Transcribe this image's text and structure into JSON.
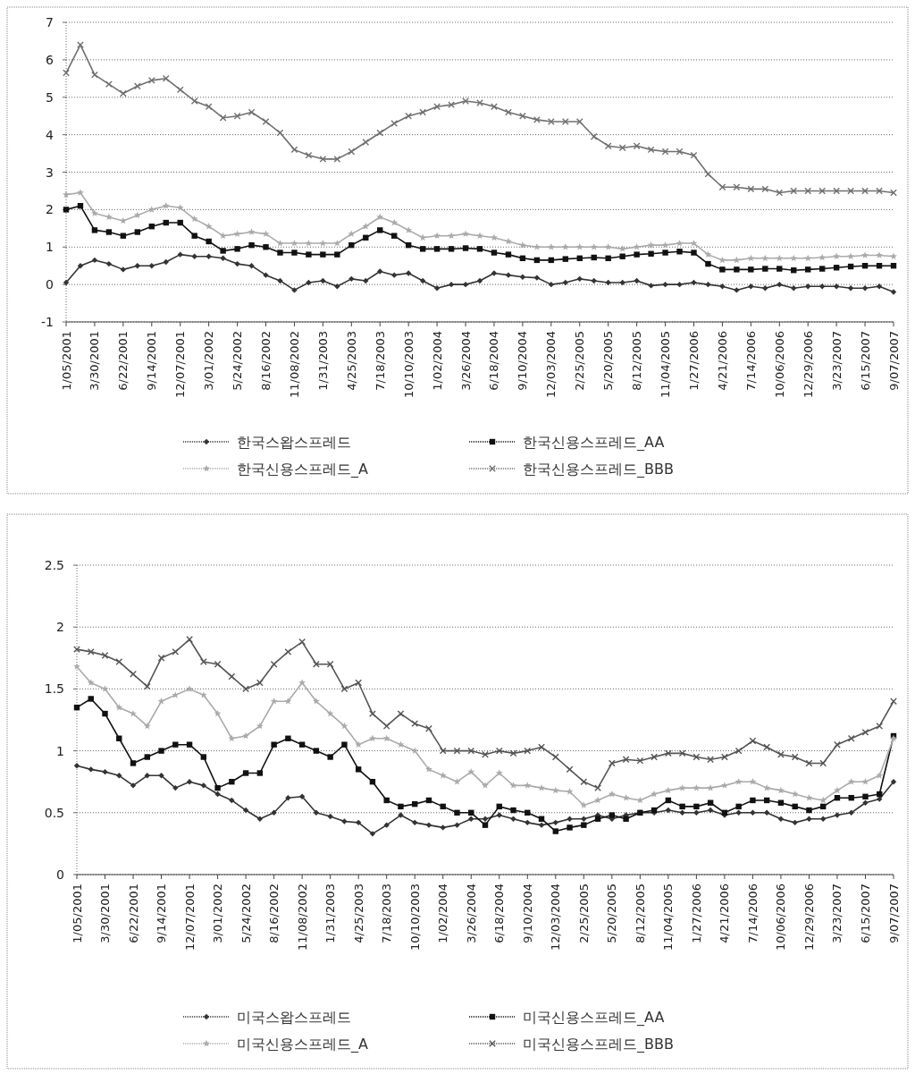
{
  "chart_data": [
    {
      "type": "line",
      "grid": "y",
      "legend": "bottom",
      "x": [
        "2001-01-05",
        "2001-02-16",
        "2001-03-30",
        "2001-05-11",
        "2001-06-22",
        "2001-08-03",
        "2001-09-14",
        "2001-10-26",
        "2001-12-07",
        "2002-01-18",
        "2002-03-01",
        "2002-04-12",
        "2002-05-24",
        "2002-07-05",
        "2002-08-16",
        "2002-09-27",
        "2002-11-08",
        "2002-12-20",
        "2003-01-31",
        "2003-03-14",
        "2003-04-25",
        "2003-06-06",
        "2003-07-18",
        "2003-08-29",
        "2003-10-10",
        "2003-11-21",
        "2004-01-02",
        "2004-02-13",
        "2004-03-26",
        "2004-05-07",
        "2004-06-18",
        "2004-07-30",
        "2004-09-10",
        "2004-10-22",
        "2004-12-03",
        "2005-01-14",
        "2005-02-25",
        "2005-04-08",
        "2005-05-20",
        "2005-07-01",
        "2005-08-12",
        "2005-09-23",
        "2005-11-04",
        "2005-12-16",
        "2006-01-27",
        "2006-03-10",
        "2006-04-21",
        "2006-06-02",
        "2006-07-14",
        "2006-08-25",
        "2006-10-06",
        "2006-11-17",
        "2006-12-29",
        "2007-02-09",
        "2007-03-23",
        "2007-05-04",
        "2007-06-15",
        "2007-07-27",
        "2007-09-07"
      ],
      "xlim": [
        "2001-01-05",
        "2007-09-07"
      ],
      "xticks": [
        {
          "value": "2001-01-05",
          "label": "1/05/2001"
        },
        {
          "value": "2001-03-30",
          "label": "3/30/2001"
        },
        {
          "value": "2001-06-22",
          "label": "6/22/2001"
        },
        {
          "value": "2001-09-14",
          "label": "9/14/2001"
        },
        {
          "value": "2001-12-07",
          "label": "12/07/2001"
        },
        {
          "value": "2002-03-01",
          "label": "3/01/2002"
        },
        {
          "value": "2002-05-24",
          "label": "5/24/2002"
        },
        {
          "value": "2002-08-16",
          "label": "8/16/2002"
        },
        {
          "value": "2002-11-08",
          "label": "11/08/2002"
        },
        {
          "value": "2003-01-31",
          "label": "1/31/2003"
        },
        {
          "value": "2003-04-25",
          "label": "4/25/2003"
        },
        {
          "value": "2003-07-18",
          "label": "7/18/2003"
        },
        {
          "value": "2003-10-10",
          "label": "10/10/2003"
        },
        {
          "value": "2004-01-02",
          "label": "1/02/2004"
        },
        {
          "value": "2004-03-26",
          "label": "3/26/2004"
        },
        {
          "value": "2004-06-18",
          "label": "6/18/2004"
        },
        {
          "value": "2004-09-10",
          "label": "9/10/2004"
        },
        {
          "value": "2004-12-03",
          "label": "12/03/2004"
        },
        {
          "value": "2005-02-25",
          "label": "2/25/2005"
        },
        {
          "value": "2005-05-20",
          "label": "5/20/2005"
        },
        {
          "value": "2005-08-12",
          "label": "8/12/2005"
        },
        {
          "value": "2005-11-04",
          "label": "11/04/2005"
        },
        {
          "value": "2006-01-27",
          "label": "1/27/2006"
        },
        {
          "value": "2006-04-21",
          "label": "4/21/2006"
        },
        {
          "value": "2006-07-14",
          "label": "7/14/2006"
        },
        {
          "value": "2006-10-06",
          "label": "10/06/2006"
        },
        {
          "value": "2006-12-29",
          "label": "12/29/2006"
        },
        {
          "value": "2007-03-23",
          "label": "3/23/2007"
        },
        {
          "value": "2007-06-15",
          "label": "6/15/2007"
        },
        {
          "value": "2007-09-07",
          "label": "9/07/2007"
        }
      ],
      "ylim": [
        -1,
        7
      ],
      "yticks": [
        -1,
        0,
        1,
        2,
        3,
        4,
        5,
        6,
        7
      ],
      "series": [
        {
          "name": "한국스왑스프레드",
          "color": "#333333",
          "marker": "diamond",
          "values": [
            0.05,
            0.5,
            0.65,
            0.55,
            0.4,
            0.5,
            0.5,
            0.6,
            0.8,
            0.75,
            0.75,
            0.7,
            0.55,
            0.5,
            0.25,
            0.1,
            -0.15,
            0.05,
            0.1,
            -0.05,
            0.15,
            0.1,
            0.35,
            0.25,
            0.3,
            0.1,
            -0.1,
            0,
            0,
            0.1,
            0.3,
            0.25,
            0.2,
            0.18,
            0,
            0.05,
            0.15,
            0.1,
            0.05,
            0.05,
            0.1,
            -0.03,
            0,
            0,
            0.05,
            0,
            -0.05,
            -0.15,
            -0.05,
            -0.1,
            0,
            -0.1,
            -0.05,
            -0.05,
            -0.05,
            -0.1,
            -0.1,
            -0.05,
            -0.2
          ]
        },
        {
          "name": "한국신용스프레드_AA",
          "color": "#111111",
          "marker": "square",
          "values": [
            2.0,
            2.1,
            1.45,
            1.4,
            1.3,
            1.4,
            1.55,
            1.65,
            1.65,
            1.3,
            1.15,
            0.9,
            0.95,
            1.05,
            1.0,
            0.85,
            0.85,
            0.8,
            0.8,
            0.8,
            1.05,
            1.25,
            1.45,
            1.3,
            1.05,
            0.95,
            0.95,
            0.95,
            0.97,
            0.95,
            0.85,
            0.8,
            0.7,
            0.65,
            0.65,
            0.68,
            0.7,
            0.72,
            0.7,
            0.75,
            0.8,
            0.82,
            0.85,
            0.88,
            0.85,
            0.55,
            0.4,
            0.4,
            0.4,
            0.42,
            0.42,
            0.38,
            0.4,
            0.42,
            0.45,
            0.48,
            0.5,
            0.5,
            0.5
          ]
        },
        {
          "name": "한국신용스프레드_A",
          "color": "#aaaaaa",
          "marker": "star",
          "values": [
            2.4,
            2.45,
            1.9,
            1.8,
            1.7,
            1.85,
            2.0,
            2.1,
            2.05,
            1.75,
            1.55,
            1.3,
            1.35,
            1.4,
            1.35,
            1.1,
            1.1,
            1.1,
            1.1,
            1.1,
            1.35,
            1.55,
            1.8,
            1.65,
            1.45,
            1.25,
            1.3,
            1.3,
            1.35,
            1.3,
            1.25,
            1.15,
            1.05,
            1.0,
            1.0,
            1.0,
            1.0,
            1.0,
            1.0,
            0.95,
            1.0,
            1.05,
            1.05,
            1.1,
            1.1,
            0.8,
            0.65,
            0.65,
            0.7,
            0.7,
            0.7,
            0.7,
            0.7,
            0.72,
            0.75,
            0.75,
            0.78,
            0.78,
            0.75
          ]
        },
        {
          "name": "한국신용스프레드_BBB",
          "color": "#707070",
          "marker": "cross",
          "values": [
            5.65,
            6.4,
            5.6,
            5.35,
            5.1,
            5.3,
            5.45,
            5.5,
            5.2,
            4.9,
            4.75,
            4.45,
            4.5,
            4.6,
            4.35,
            4.05,
            3.6,
            3.45,
            3.35,
            3.35,
            3.55,
            3.8,
            4.05,
            4.3,
            4.5,
            4.6,
            4.75,
            4.8,
            4.9,
            4.85,
            4.75,
            4.6,
            4.5,
            4.4,
            4.35,
            4.35,
            4.35,
            3.95,
            3.7,
            3.65,
            3.7,
            3.6,
            3.55,
            3.55,
            3.45,
            2.95,
            2.6,
            2.6,
            2.55,
            2.55,
            2.45,
            2.5,
            2.5,
            2.5,
            2.5,
            2.5,
            2.5,
            2.5,
            2.45
          ]
        }
      ]
    },
    {
      "type": "line",
      "grid": "y",
      "legend": "bottom",
      "x": [
        "2001-01-05",
        "2001-02-16",
        "2001-03-30",
        "2001-05-11",
        "2001-06-22",
        "2001-08-03",
        "2001-09-14",
        "2001-10-26",
        "2001-12-07",
        "2002-01-18",
        "2002-03-01",
        "2002-04-12",
        "2002-05-24",
        "2002-07-05",
        "2002-08-16",
        "2002-09-27",
        "2002-11-08",
        "2002-12-20",
        "2003-01-31",
        "2003-03-14",
        "2003-04-25",
        "2003-06-06",
        "2003-07-18",
        "2003-08-29",
        "2003-10-10",
        "2003-11-21",
        "2004-01-02",
        "2004-02-13",
        "2004-03-26",
        "2004-05-07",
        "2004-06-18",
        "2004-07-30",
        "2004-09-10",
        "2004-10-22",
        "2004-12-03",
        "2005-01-14",
        "2005-02-25",
        "2005-04-08",
        "2005-05-20",
        "2005-07-01",
        "2005-08-12",
        "2005-09-23",
        "2005-11-04",
        "2005-12-16",
        "2006-01-27",
        "2006-03-10",
        "2006-04-21",
        "2006-06-02",
        "2006-07-14",
        "2006-08-25",
        "2006-10-06",
        "2006-11-17",
        "2006-12-29",
        "2007-02-09",
        "2007-03-23",
        "2007-05-04",
        "2007-06-15",
        "2007-07-27",
        "2007-09-07"
      ],
      "xlim": [
        "2001-01-05",
        "2007-09-07"
      ],
      "xticks": [
        {
          "value": "2001-01-05",
          "label": "1/05/2001"
        },
        {
          "value": "2001-03-30",
          "label": "3/30/2001"
        },
        {
          "value": "2001-06-22",
          "label": "6/22/2001"
        },
        {
          "value": "2001-09-14",
          "label": "9/14/2001"
        },
        {
          "value": "2001-12-07",
          "label": "12/07/2001"
        },
        {
          "value": "2002-03-01",
          "label": "3/01/2002"
        },
        {
          "value": "2002-05-24",
          "label": "5/24/2002"
        },
        {
          "value": "2002-08-16",
          "label": "8/16/2002"
        },
        {
          "value": "2002-11-08",
          "label": "11/08/2002"
        },
        {
          "value": "2003-01-31",
          "label": "1/31/2003"
        },
        {
          "value": "2003-04-25",
          "label": "4/25/2003"
        },
        {
          "value": "2003-07-18",
          "label": "7/18/2003"
        },
        {
          "value": "2003-10-10",
          "label": "10/10/2003"
        },
        {
          "value": "2004-01-02",
          "label": "1/02/2004"
        },
        {
          "value": "2004-03-26",
          "label": "3/26/2004"
        },
        {
          "value": "2004-06-18",
          "label": "6/18/2004"
        },
        {
          "value": "2004-09-10",
          "label": "9/10/2004"
        },
        {
          "value": "2004-12-03",
          "label": "12/03/2004"
        },
        {
          "value": "2005-02-25",
          "label": "2/25/2005"
        },
        {
          "value": "2005-05-20",
          "label": "5/20/2005"
        },
        {
          "value": "2005-08-12",
          "label": "8/12/2005"
        },
        {
          "value": "2005-11-04",
          "label": "11/04/2005"
        },
        {
          "value": "2006-01-27",
          "label": "1/27/2006"
        },
        {
          "value": "2006-04-21",
          "label": "4/21/2006"
        },
        {
          "value": "2006-07-14",
          "label": "7/14/2006"
        },
        {
          "value": "2006-10-06",
          "label": "10/06/2006"
        },
        {
          "value": "2006-12-29",
          "label": "12/29/2006"
        },
        {
          "value": "2007-03-23",
          "label": "3/23/2007"
        },
        {
          "value": "2007-06-15",
          "label": "6/15/2007"
        },
        {
          "value": "2007-09-07",
          "label": "9/07/2007"
        }
      ],
      "ylim": [
        0,
        2.5
      ],
      "yticks": [
        0,
        0.5,
        1,
        1.5,
        2,
        2.5
      ],
      "series": [
        {
          "name": "미국스왑스프레드",
          "color": "#333333",
          "marker": "diamond",
          "values": [
            0.88,
            0.85,
            0.83,
            0.8,
            0.72,
            0.8,
            0.8,
            0.7,
            0.75,
            0.72,
            0.65,
            0.6,
            0.52,
            0.45,
            0.5,
            0.62,
            0.63,
            0.5,
            0.47,
            0.43,
            0.42,
            0.33,
            0.4,
            0.48,
            0.42,
            0.4,
            0.38,
            0.4,
            0.45,
            0.45,
            0.48,
            0.45,
            0.42,
            0.4,
            0.42,
            0.45,
            0.45,
            0.48,
            0.45,
            0.48,
            0.5,
            0.5,
            0.52,
            0.5,
            0.5,
            0.52,
            0.48,
            0.5,
            0.5,
            0.5,
            0.45,
            0.42,
            0.45,
            0.45,
            0.48,
            0.5,
            0.58,
            0.61,
            0.75
          ]
        },
        {
          "name": "미국신용스프레드_AA",
          "color": "#111111",
          "marker": "square",
          "values": [
            1.35,
            1.42,
            1.3,
            1.1,
            0.9,
            0.95,
            1.0,
            1.05,
            1.05,
            0.95,
            0.7,
            0.75,
            0.82,
            0.82,
            1.05,
            1.1,
            1.05,
            1.0,
            0.95,
            1.05,
            0.85,
            0.75,
            0.6,
            0.55,
            0.57,
            0.6,
            0.55,
            0.5,
            0.5,
            0.4,
            0.55,
            0.52,
            0.5,
            0.45,
            0.35,
            0.38,
            0.4,
            0.45,
            0.48,
            0.45,
            0.5,
            0.52,
            0.6,
            0.55,
            0.55,
            0.58,
            0.5,
            0.55,
            0.6,
            0.6,
            0.58,
            0.55,
            0.52,
            0.55,
            0.62,
            0.62,
            0.63,
            0.65,
            1.12
          ]
        },
        {
          "name": "미국신용스프레드_A",
          "color": "#aaaaaa",
          "marker": "star",
          "values": [
            1.68,
            1.55,
            1.5,
            1.35,
            1.3,
            1.2,
            1.4,
            1.45,
            1.5,
            1.45,
            1.3,
            1.1,
            1.12,
            1.2,
            1.4,
            1.4,
            1.55,
            1.4,
            1.3,
            1.2,
            1.05,
            1.1,
            1.1,
            1.05,
            1.0,
            0.85,
            0.8,
            0.75,
            0.83,
            0.72,
            0.82,
            0.72,
            0.72,
            0.7,
            0.68,
            0.67,
            0.56,
            0.6,
            0.65,
            0.62,
            0.6,
            0.65,
            0.68,
            0.7,
            0.7,
            0.7,
            0.72,
            0.75,
            0.75,
            0.7,
            0.68,
            0.65,
            0.62,
            0.6,
            0.68,
            0.75,
            0.75,
            0.8,
            1.1
          ]
        },
        {
          "name": "미국신용스프레드_BBB",
          "color": "#555555",
          "marker": "cross",
          "values": [
            1.82,
            1.8,
            1.77,
            1.72,
            1.62,
            1.52,
            1.75,
            1.8,
            1.9,
            1.72,
            1.7,
            1.6,
            1.5,
            1.55,
            1.7,
            1.8,
            1.88,
            1.7,
            1.7,
            1.5,
            1.55,
            1.3,
            1.2,
            1.3,
            1.22,
            1.18,
            1.0,
            1.0,
            1.0,
            0.97,
            1.0,
            0.98,
            1.0,
            1.03,
            0.95,
            0.85,
            0.75,
            0.7,
            0.9,
            0.93,
            0.92,
            0.95,
            0.98,
            0.98,
            0.95,
            0.93,
            0.95,
            1.0,
            1.08,
            1.03,
            0.97,
            0.95,
            0.9,
            0.9,
            1.05,
            1.1,
            1.15,
            1.2,
            1.4
          ]
        }
      ]
    }
  ]
}
